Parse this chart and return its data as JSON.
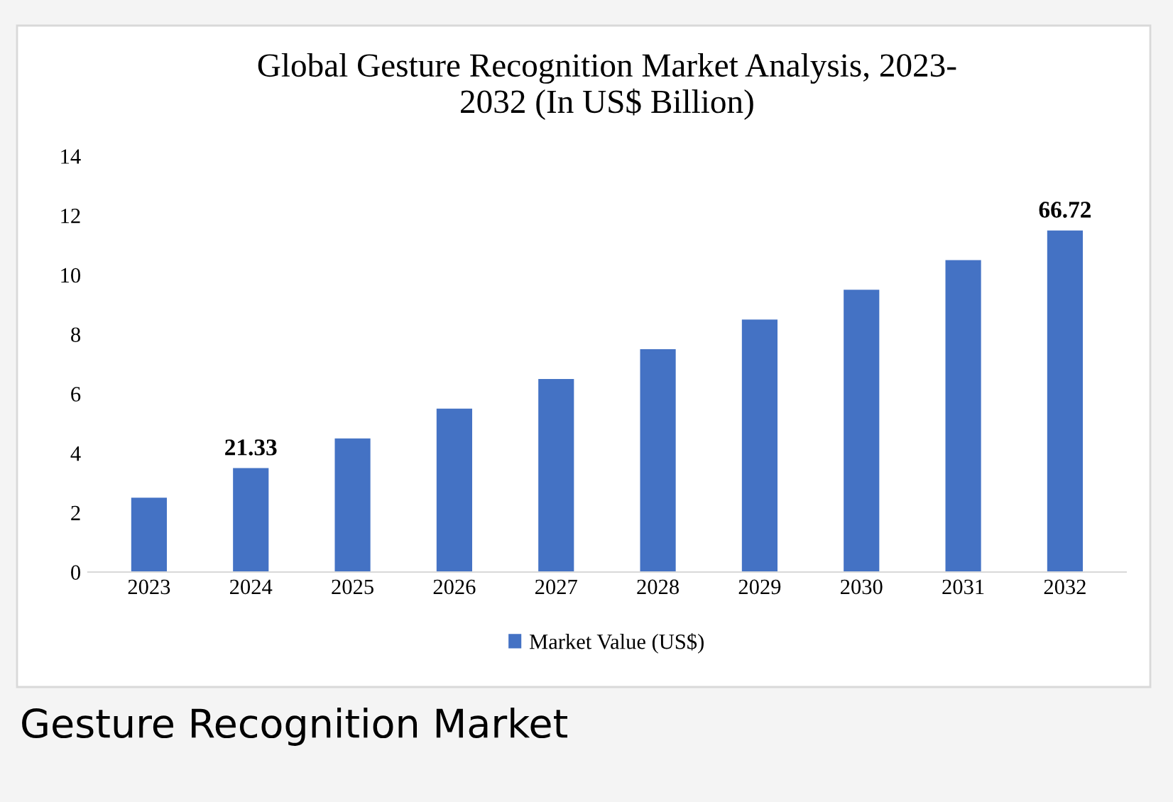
{
  "chart_data": {
    "type": "bar",
    "title": "Global Gesture Recognition Market Analysis, 2023-\n2032 (In US$ Billion)",
    "categories": [
      "2023",
      "2024",
      "2025",
      "2026",
      "2027",
      "2028",
      "2029",
      "2030",
      "2031",
      "2032"
    ],
    "series": [
      {
        "name": "Market Value (US$)",
        "color": "#4472c4",
        "values": [
          2.5,
          3.5,
          4.5,
          5.5,
          6.5,
          7.5,
          8.5,
          9.5,
          10.5,
          11.5
        ]
      }
    ],
    "ylim": [
      0,
      14
    ],
    "yticks": [
      0,
      2,
      4,
      6,
      8,
      10,
      12,
      14
    ],
    "legend": "bottom",
    "annotations": [
      {
        "text": "21.33",
        "x": "2024",
        "y": 3.5
      },
      {
        "text": "66.72",
        "x": "2032",
        "y": 11.5
      },
      "Gesture Recognition Market"
    ]
  }
}
